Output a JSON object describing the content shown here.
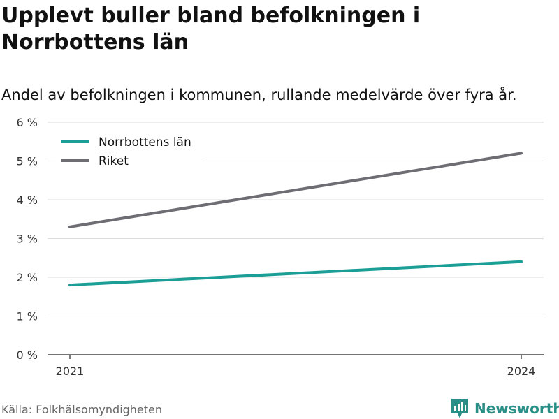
{
  "header": {
    "title": "Upplevt buller bland befolkningen i Norrbottens län",
    "subtitle": "Andel av befolkningen i kommunen, rullande medelvärde över fyra år."
  },
  "footer": {
    "source": "Källa: Folkhälsomyndigheten",
    "brand": "Newsworthy",
    "brand_icon": "chart-logo-icon"
  },
  "chart_data": {
    "type": "line",
    "x": [
      2021,
      2024
    ],
    "x_tick_labels": [
      "2021",
      "2024"
    ],
    "ylim": [
      0,
      6
    ],
    "y_ticks": [
      0,
      1,
      2,
      3,
      4,
      5,
      6
    ],
    "y_tick_labels": [
      "0 %",
      "1 %",
      "2 %",
      "3 %",
      "4 %",
      "5 %",
      "6 %"
    ],
    "grid": true,
    "legend_position": "top-left",
    "series": [
      {
        "name": "Norrbottens län",
        "color": "#1a9e96",
        "values": [
          1.8,
          2.4
        ]
      },
      {
        "name": "Riket",
        "color": "#6e6d74",
        "values": [
          3.3,
          5.2
        ]
      }
    ]
  }
}
